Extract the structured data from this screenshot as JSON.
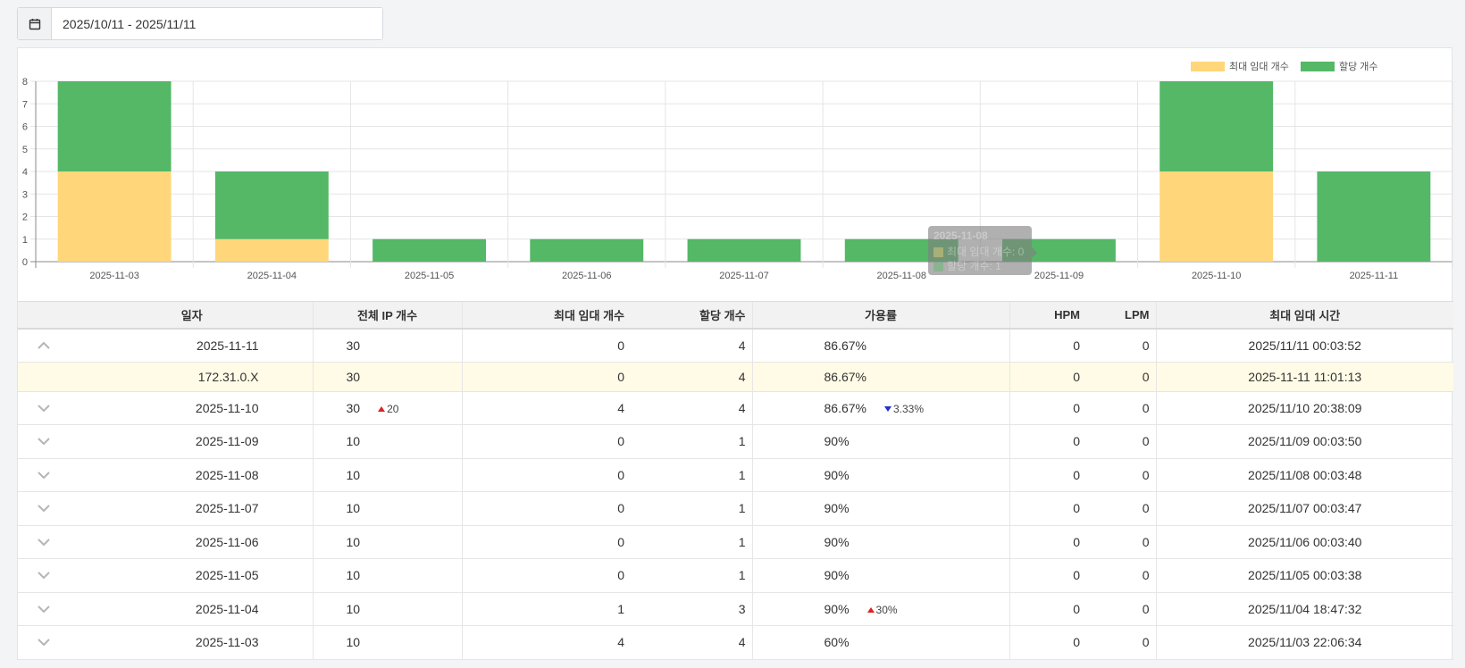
{
  "date_range": {
    "value": "2025/10/11 - 2025/11/11"
  },
  "colors": {
    "max_rent": "#ffd77a",
    "allocated": "#54b867"
  },
  "chart_data": {
    "type": "bar",
    "stacked": true,
    "categories": [
      "2025-11-03",
      "2025-11-04",
      "2025-11-05",
      "2025-11-06",
      "2025-11-07",
      "2025-11-08",
      "2025-11-09",
      "2025-11-10",
      "2025-11-11"
    ],
    "series": [
      {
        "name": "최대 임대 개수",
        "values": [
          4,
          1,
          0,
          0,
          0,
          0,
          0,
          4,
          0
        ]
      },
      {
        "name": "할당 개수",
        "values": [
          4,
          3,
          1,
          1,
          1,
          1,
          1,
          4,
          4
        ]
      }
    ],
    "ylim": [
      0,
      8
    ],
    "yticks": [
      "0",
      "1",
      "2",
      "3",
      "4",
      "5",
      "6",
      "7",
      "8"
    ],
    "legend": "top-right",
    "grid": true,
    "tooltip": {
      "title": "2025-11-08",
      "rows": [
        "최대 임대 개수: 0",
        "할당 개수: 1"
      ]
    }
  },
  "table": {
    "headers": {
      "date": "일자",
      "total_ip": "전체 IP 개수",
      "max_rent": "최대 임대 개수",
      "allocated": "할당 개수",
      "rate": "가용률",
      "hpm": "HPM",
      "lpm": "LPM",
      "max_time": "최대 임대 시간"
    },
    "rows": [
      {
        "date": "2025-11-11",
        "total": "30",
        "total_delta": "",
        "max": "0",
        "alloc": "4",
        "rate": "86.67%",
        "rate_delta": "",
        "hpm": "0",
        "lpm": "0",
        "time": "2025/11/11 00:03:52",
        "expanded": true
      },
      {
        "sub": true,
        "date": "172.31.0.X",
        "total": "30",
        "max": "0",
        "alloc": "4",
        "rate": "86.67%",
        "hpm": "0",
        "lpm": "0",
        "time": "2025-11-11 11:01:13"
      },
      {
        "date": "2025-11-10",
        "total": "30",
        "total_delta": "20",
        "total_dir": "up",
        "max": "4",
        "alloc": "4",
        "rate": "86.67%",
        "rate_delta": "3.33%",
        "rate_dir": "down",
        "hpm": "0",
        "lpm": "0",
        "time": "2025/11/10 20:38:09"
      },
      {
        "date": "2025-11-09",
        "total": "10",
        "total_delta": "",
        "max": "0",
        "alloc": "1",
        "rate": "90%",
        "rate_delta": "",
        "hpm": "0",
        "lpm": "0",
        "time": "2025/11/09 00:03:50"
      },
      {
        "date": "2025-11-08",
        "total": "10",
        "total_delta": "",
        "max": "0",
        "alloc": "1",
        "rate": "90%",
        "rate_delta": "",
        "hpm": "0",
        "lpm": "0",
        "time": "2025/11/08 00:03:48"
      },
      {
        "date": "2025-11-07",
        "total": "10",
        "total_delta": "",
        "max": "0",
        "alloc": "1",
        "rate": "90%",
        "rate_delta": "",
        "hpm": "0",
        "lpm": "0",
        "time": "2025/11/07 00:03:47"
      },
      {
        "date": "2025-11-06",
        "total": "10",
        "total_delta": "",
        "max": "0",
        "alloc": "1",
        "rate": "90%",
        "rate_delta": "",
        "hpm": "0",
        "lpm": "0",
        "time": "2025/11/06 00:03:40"
      },
      {
        "date": "2025-11-05",
        "total": "10",
        "total_delta": "",
        "max": "0",
        "alloc": "1",
        "rate": "90%",
        "rate_delta": "",
        "hpm": "0",
        "lpm": "0",
        "time": "2025/11/05 00:03:38"
      },
      {
        "date": "2025-11-04",
        "total": "10",
        "total_delta": "",
        "max": "1",
        "alloc": "3",
        "rate": "90%",
        "rate_delta": "30%",
        "rate_dir": "up",
        "hpm": "0",
        "lpm": "0",
        "time": "2025/11/04 18:47:32"
      },
      {
        "date": "2025-11-03",
        "total": "10",
        "total_delta": "",
        "max": "4",
        "alloc": "4",
        "rate": "60%",
        "rate_delta": "",
        "hpm": "0",
        "lpm": "0",
        "time": "2025/11/03 22:06:34"
      }
    ]
  }
}
